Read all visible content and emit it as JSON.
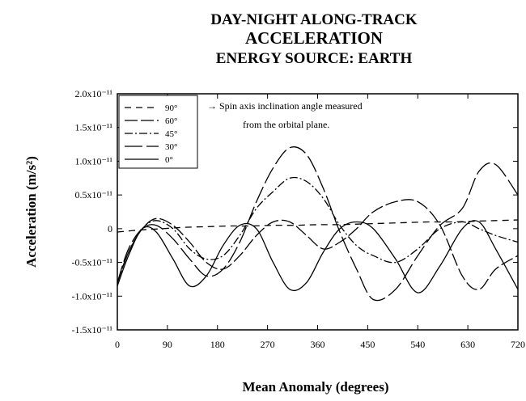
{
  "chart_data": {
    "type": "line",
    "title_lines": [
      "DAY-NIGHT ALONG-TRACK",
      "ACCELERATION",
      "ENERGY SOURCE: EARTH"
    ],
    "xlabel": "Mean Anomaly  (degrees)",
    "ylabel": "Acceleration (m/s²)",
    "xlim": [
      0,
      720
    ],
    "ylim": [
      -1.5e-11,
      2e-11
    ],
    "x_ticks": [
      0,
      90,
      180,
      270,
      360,
      450,
      540,
      630,
      720
    ],
    "y_ticks": [
      {
        "value": 2e-11,
        "label": "2.0x10⁻¹¹"
      },
      {
        "value": 1.5e-11,
        "label": "1.5x10⁻¹¹"
      },
      {
        "value": 1e-11,
        "label": "1.0x10⁻¹¹"
      },
      {
        "value": 5e-12,
        "label": "0.5x10⁻¹¹"
      },
      {
        "value": 0,
        "label": "0"
      },
      {
        "value": -5e-12,
        "label": "-0.5x10⁻¹¹"
      },
      {
        "value": -1e-11,
        "label": "-1.0x10⁻¹¹"
      },
      {
        "value": -1.5e-11,
        "label": "-1.5x10⁻¹¹"
      }
    ],
    "grid": false,
    "legend_position": "top-left",
    "annotation": [
      "→  Spin axis inclination angle measured",
      "from the orbital plane."
    ],
    "series": [
      {
        "name": "90°",
        "dash": "8,6",
        "x": [
          0,
          40,
          80,
          120,
          160,
          200,
          240,
          280,
          320,
          360,
          400,
          440,
          480,
          520,
          560,
          600,
          640,
          680,
          720
        ],
        "y": [
          -5e-13,
          -2e-13,
          0.0,
          2e-13,
          3e-13,
          4e-13,
          4e-13,
          5e-13,
          5e-13,
          6e-13,
          6e-13,
          7e-13,
          8e-13,
          9e-13,
          1e-12,
          1e-12,
          1.1e-12,
          1.2e-12,
          1.3e-12
        ]
      },
      {
        "name": "60°",
        "dash": "16,4",
        "x": [
          0,
          20,
          45,
          70,
          100,
          130,
          160,
          190,
          220,
          250,
          280,
          310,
          340,
          370,
          400,
          430,
          460,
          500,
          540,
          580,
          620,
          650,
          680,
          720
        ],
        "y": [
          -8e-12,
          -3.5e-12,
          0.0,
          1.5e-12,
          5e-13,
          -2e-12,
          -5e-12,
          -6e-12,
          -4e-12,
          -1e-12,
          1e-12,
          1e-12,
          -1e-12,
          -3e-12,
          -2e-12,
          0.0,
          2.5e-12,
          4e-12,
          4e-12,
          5e-13,
          -7e-12,
          -9e-12,
          -6e-12,
          -4e-12
        ]
      },
      {
        "name": "45°",
        "dash": "10,3,2,3",
        "x": [
          0,
          20,
          45,
          70,
          100,
          130,
          160,
          190,
          220,
          250,
          280,
          310,
          340,
          370,
          400,
          430,
          460,
          500,
          540,
          580,
          620,
          650,
          680,
          720
        ],
        "y": [
          -8e-12,
          -3.5e-12,
          0.0,
          1.2e-12,
          0.0,
          -3e-12,
          -4.5e-12,
          -4e-12,
          -1e-12,
          3e-12,
          5.5e-12,
          7.5e-12,
          7e-12,
          4.5e-12,
          5e-13,
          -2.5e-12,
          -4e-12,
          -5e-12,
          -3e-12,
          0.0,
          1e-12,
          0.0,
          -1e-12,
          -2e-12
        ]
      },
      {
        "name": "30°",
        "dash": "22,5",
        "x": [
          0,
          20,
          45,
          70,
          100,
          130,
          160,
          190,
          220,
          250,
          280,
          310,
          340,
          370,
          400,
          430,
          460,
          500,
          540,
          580,
          620,
          650,
          680,
          720
        ],
        "y": [
          -8e-12,
          -3e-12,
          0.0,
          5e-13,
          -1.5e-12,
          -4.5e-12,
          -7e-12,
          -6e-12,
          -2e-12,
          4e-12,
          9e-12,
          1.2e-11,
          1.1e-11,
          6e-12,
          -5e-13,
          -6e-12,
          -1.05e-11,
          -9e-12,
          -4e-12,
          5e-13,
          3e-12,
          8.5e-12,
          9.5e-12,
          5e-12
        ]
      },
      {
        "name": "0°",
        "dash": "",
        "x": [
          0,
          20,
          45,
          70,
          100,
          130,
          160,
          190,
          220,
          250,
          280,
          310,
          340,
          370,
          400,
          430,
          460,
          500,
          540,
          580,
          620,
          650,
          680,
          720
        ],
        "y": [
          -8.5e-12,
          -4e-12,
          0.0,
          -5e-13,
          -4.5e-12,
          -8.5e-12,
          -7e-12,
          -2.5e-12,
          5e-13,
          0.0,
          -5e-12,
          -9e-12,
          -8e-12,
          -3.5e-12,
          0.0,
          1e-12,
          0.0,
          -4.5e-12,
          -9.5e-12,
          -5.5e-12,
          0.0,
          1e-12,
          -3e-12,
          -9e-12
        ]
      }
    ]
  }
}
